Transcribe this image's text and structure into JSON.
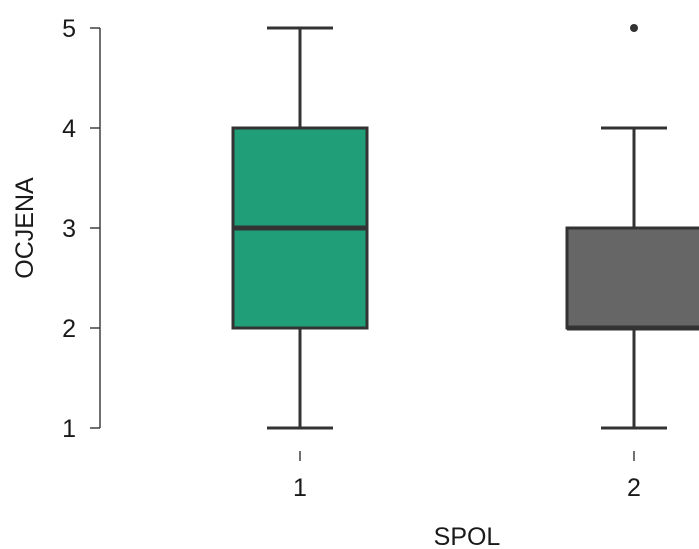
{
  "chart_data": {
    "type": "boxplot",
    "xlabel": "SPOL",
    "ylabel": "OCJENA",
    "ylim": [
      1,
      5
    ],
    "yticks": [
      1,
      2,
      3,
      4,
      5
    ],
    "categories": [
      "1",
      "2"
    ],
    "grid": false,
    "legend": "none",
    "series": [
      {
        "category": "1",
        "whisker_low": 1,
        "q1": 2,
        "median": 3,
        "q3": 4,
        "whisker_high": 5,
        "outliers": [],
        "color": "#1f9e77"
      },
      {
        "category": "2",
        "whisker_low": 1,
        "q1": 2,
        "median": 2,
        "q3": 3,
        "whisker_high": 4,
        "outliers": [
          5
        ],
        "color": "#666666"
      }
    ]
  }
}
